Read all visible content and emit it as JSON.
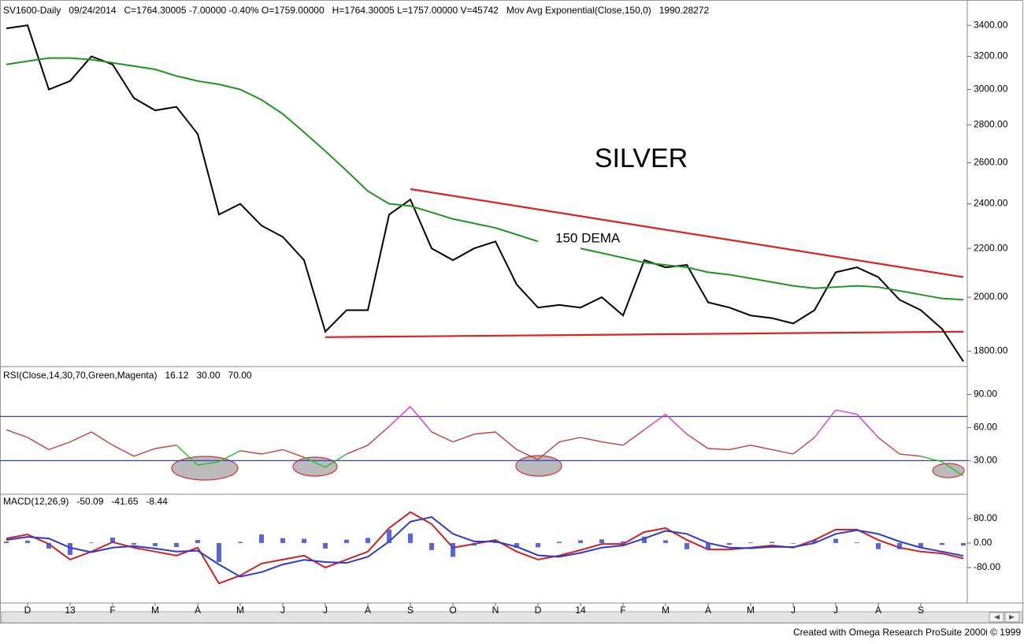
{
  "footer": "Created with Omega Research ProSuite 2000i © 1999",
  "chart_data": [
    {
      "type": "line",
      "title": "SILVER",
      "annotation": "150 DEMA",
      "date": "09/24/2014",
      "quote": "C=1764.30005 -7.00000 -0.40% O=1759.00000",
      "quote_color": "#cc1010",
      "stats": "H=1764.30005 L=1757.00000 V=45742",
      "log_scale": true,
      "ylim": [
        1755,
        3545
      ],
      "yticks": [
        {
          "value": 1800,
          "label": "1800.00"
        },
        {
          "value": 2000,
          "label": "2000.00"
        },
        {
          "value": 2200,
          "label": "2200.00"
        },
        {
          "value": 2400,
          "label": "2400.00"
        },
        {
          "value": 2600,
          "label": "2600.00"
        },
        {
          "value": 2800,
          "label": "2800.00"
        },
        {
          "value": 3000,
          "label": "3000.00"
        },
        {
          "value": 3200,
          "label": "3200.00"
        },
        {
          "value": 3400,
          "label": "3400.00"
        }
      ],
      "series": [
        {
          "name": "SV1600-Daily",
          "color": "#000000",
          "values": [
            3380,
            3400,
            3000,
            3050,
            3200,
            3150,
            2950,
            2880,
            2900,
            2750,
            2350,
            2400,
            2300,
            2250,
            2150,
            1870,
            1950,
            1950,
            2350,
            2420,
            2200,
            2150,
            2200,
            2230,
            2050,
            1960,
            1970,
            1960,
            2000,
            1930,
            2150,
            2120,
            2130,
            1980,
            1960,
            1930,
            1920,
            1900,
            1950,
            2100,
            2120,
            2080,
            1990,
            1950,
            1880,
            1764.3
          ]
        },
        {
          "name": "Mov Avg Exponential(Close,150,0)",
          "color": "#1e961e",
          "values": [
            3150,
            3170,
            3190,
            3190,
            3180,
            3160,
            3140,
            3120,
            3080,
            3050,
            3030,
            3000,
            2940,
            2860,
            2760,
            2660,
            2560,
            2460,
            2400,
            2390,
            2360,
            2330,
            2310,
            2290,
            2260,
            2230,
            null,
            2200,
            2180,
            2160,
            2140,
            2130,
            2120,
            2100,
            2090,
            2075,
            2060,
            2045,
            2035,
            2040,
            2045,
            2040,
            2025,
            2010,
            1995,
            1990.28272
          ]
        }
      ],
      "trend_lines": [
        {
          "color": "#e02020",
          "x": [
            19,
            45
          ],
          "values": [
            2470,
            2080
          ]
        },
        {
          "color": "#e02020",
          "x": [
            15,
            45
          ],
          "values": [
            1850,
            1870
          ]
        }
      ]
    },
    {
      "type": "line",
      "ylim": [
        1,
        106
      ],
      "yticks": [
        {
          "value": 30,
          "label": "30.00"
        },
        {
          "value": 60,
          "label": "60.00"
        },
        {
          "value": 90,
          "label": "90.00"
        }
      ],
      "levels": [
        {
          "value": 30,
          "label": "30.00"
        },
        {
          "value": 70,
          "label": "70.00"
        }
      ],
      "level_color": "#3c3cc8",
      "series": [
        {
          "name": "RSI(Close,14,30,70,Green,Magenta)",
          "color": "#c0403a",
          "low_color": "#22c022",
          "high_color": "#dd33dd",
          "values": [
            58,
            51,
            40,
            47,
            56,
            44,
            34,
            41,
            44,
            26,
            29,
            39,
            36,
            40,
            33,
            24,
            36,
            44,
            61,
            79,
            56,
            47,
            54,
            56,
            40,
            31,
            47,
            51,
            47,
            44,
            58,
            72,
            54,
            41,
            40,
            44,
            40,
            36,
            51,
            76,
            72,
            51,
            36,
            34,
            29,
            16.12
          ]
        }
      ]
    },
    {
      "type": "line",
      "title": "MACD(12,26,9)",
      "ylim": [
        -196,
        157
      ],
      "yticks": [
        {
          "value": -80,
          "label": "-80.00"
        },
        {
          "value": 0,
          "label": "0.00"
        },
        {
          "value": 80,
          "label": "80.00"
        }
      ],
      "categories": [
        null,
        "D",
        null,
        "13",
        null,
        "F",
        null,
        "M",
        null,
        "A",
        null,
        "M",
        null,
        "J",
        null,
        "J",
        null,
        "A",
        null,
        "S",
        null,
        "O",
        null,
        "N",
        null,
        "D",
        null,
        "14",
        null,
        "F",
        null,
        "M",
        null,
        "A",
        null,
        "M",
        null,
        "J",
        null,
        "J",
        null,
        "A",
        null,
        "S",
        null,
        null
      ],
      "series": [
        {
          "color": "#d02020",
          "values": [
            15,
            28,
            -3,
            -54,
            -28,
            3,
            -15,
            -28,
            -41,
            -15,
            -132,
            -106,
            -67,
            -54,
            -41,
            -80,
            -54,
            -28,
            49,
            101,
            62,
            -15,
            -3,
            10,
            -28,
            -54,
            -41,
            -23,
            -3,
            -3,
            36,
            49,
            10,
            -21,
            -21,
            -15,
            -8,
            -15,
            10,
            44,
            44,
            10,
            -15,
            -28,
            -34,
            -50.09
          ]
        },
        {
          "color": "#2a3ad0",
          "values": [
            10,
            20,
            15,
            -15,
            -30,
            -15,
            -10,
            -18,
            -28,
            -25,
            -70,
            -110,
            -95,
            -70,
            -55,
            -62,
            -65,
            -45,
            5,
            70,
            85,
            30,
            5,
            5,
            -12,
            -40,
            -45,
            -32,
            -15,
            -8,
            15,
            40,
            30,
            0,
            -15,
            -17,
            -12,
            -13,
            0,
            30,
            42,
            30,
            5,
            -15,
            -28,
            -41.65
          ]
        },
        {
          "type": "bar",
          "color": "#3a4ad8",
          "values": [
            5,
            8,
            -18,
            -39,
            2,
            18,
            -5,
            -10,
            -13,
            10,
            -62,
            4,
            28,
            16,
            14,
            -18,
            11,
            17,
            44,
            31,
            -23,
            -45,
            -8,
            5,
            -16,
            -14,
            4,
            9,
            12,
            5,
            21,
            9,
            -20,
            -21,
            -6,
            2,
            4,
            -2,
            10,
            14,
            2,
            -20,
            -20,
            -13,
            -6,
            -8.44
          ]
        }
      ]
    }
  ]
}
